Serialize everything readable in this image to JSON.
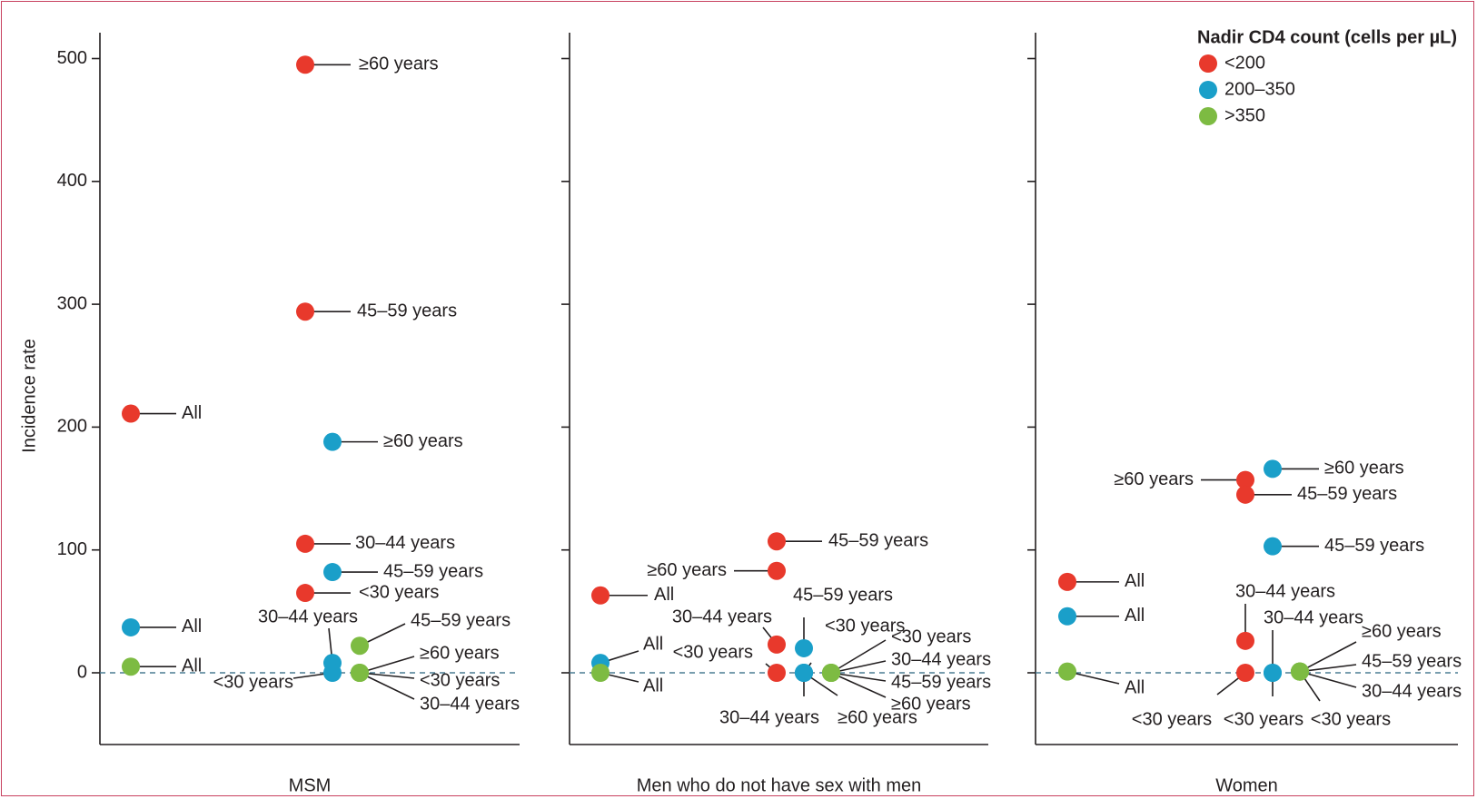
{
  "chart_data": {
    "type": "scatter",
    "ylabel": "Incidence rate",
    "ylim": [
      -57,
      510
    ],
    "yticks": [
      0,
      100,
      200,
      300,
      400,
      500
    ],
    "grid": false,
    "legend": {
      "title": "Nadir CD4 count (cells per µL)",
      "placement": "top-right",
      "entries": [
        {
          "key": "lt200",
          "label": "<200",
          "color": "#e8392c"
        },
        {
          "key": "200_350",
          "label": "200–350",
          "color": "#1a9fc9"
        },
        {
          "key": "gt350",
          "label": ">350",
          "color": "#7dbb42"
        }
      ]
    },
    "panels": [
      {
        "name": "MSM",
        "points": [
          {
            "group": "lt200",
            "label": "All",
            "y": 211
          },
          {
            "group": "200_350",
            "label": "All",
            "y": 37
          },
          {
            "group": "gt350",
            "label": "All",
            "y": 5
          },
          {
            "group": "lt200",
            "label": "≥60 years",
            "y": 495
          },
          {
            "group": "lt200",
            "label": "45–59 years",
            "y": 294
          },
          {
            "group": "lt200",
            "label": "30–44 years",
            "y": 105
          },
          {
            "group": "lt200",
            "label": "<30 years",
            "y": 65
          },
          {
            "group": "200_350",
            "label": "≥60 years",
            "y": 188
          },
          {
            "group": "200_350",
            "label": "45–59 years",
            "y": 82
          },
          {
            "group": "200_350",
            "label": "30–44 years",
            "y": 8
          },
          {
            "group": "200_350",
            "label": "<30 years",
            "y": 0
          },
          {
            "group": "gt350",
            "label": "45–59 years",
            "y": 22
          },
          {
            "group": "gt350",
            "label": "≥60 years",
            "y": 0
          },
          {
            "group": "gt350",
            "label": "<30 years",
            "y": 0
          },
          {
            "group": "gt350",
            "label": "30–44 years",
            "y": 0
          }
        ]
      },
      {
        "name": "Men who do not have sex with men",
        "points": [
          {
            "group": "lt200",
            "label": "All",
            "y": 63
          },
          {
            "group": "200_350",
            "label": "All",
            "y": 8
          },
          {
            "group": "gt350",
            "label": "All",
            "y": 0
          },
          {
            "group": "lt200",
            "label": "45–59 years",
            "y": 107
          },
          {
            "group": "lt200",
            "label": "≥60 years",
            "y": 83
          },
          {
            "group": "lt200",
            "label": "30–44 years",
            "y": 23
          },
          {
            "group": "lt200",
            "label": "<30 years",
            "y": 0
          },
          {
            "group": "200_350",
            "label": "45–59 years",
            "y": 20
          },
          {
            "group": "200_350",
            "label": "<30 years",
            "y": 0
          },
          {
            "group": "200_350",
            "label": "30–44 years",
            "y": 0
          },
          {
            "group": "200_350",
            "label": "≥60 years",
            "y": 0
          },
          {
            "group": "gt350",
            "label": "<30 years",
            "y": 0
          },
          {
            "group": "gt350",
            "label": "30–44 years",
            "y": 0
          },
          {
            "group": "gt350",
            "label": "45–59 years",
            "y": 0
          },
          {
            "group": "gt350",
            "label": "≥60 years",
            "y": 0
          }
        ]
      },
      {
        "name": "Women",
        "points": [
          {
            "group": "lt200",
            "label": "All",
            "y": 74
          },
          {
            "group": "200_350",
            "label": "All",
            "y": 46
          },
          {
            "group": "gt350",
            "label": "All",
            "y": 1
          },
          {
            "group": "lt200",
            "label": "≥60 years",
            "y": 157
          },
          {
            "group": "lt200",
            "label": "45–59 years",
            "y": 145
          },
          {
            "group": "lt200",
            "label": "30–44 years",
            "y": 26
          },
          {
            "group": "lt200",
            "label": "<30 years",
            "y": 0
          },
          {
            "group": "200_350",
            "label": "≥60 years",
            "y": 166
          },
          {
            "group": "200_350",
            "label": "45–59 years",
            "y": 103
          },
          {
            "group": "200_350",
            "label": "30–44 years",
            "y": 0
          },
          {
            "group": "200_350",
            "label": "<30 years",
            "y": 0
          },
          {
            "group": "gt350",
            "label": "≥60 years",
            "y": 1
          },
          {
            "group": "gt350",
            "label": "45–59 years",
            "y": 1
          },
          {
            "group": "gt350",
            "label": "30–44 years",
            "y": 1
          },
          {
            "group": "gt350",
            "label": "<30 years",
            "y": 1
          }
        ]
      }
    ]
  }
}
